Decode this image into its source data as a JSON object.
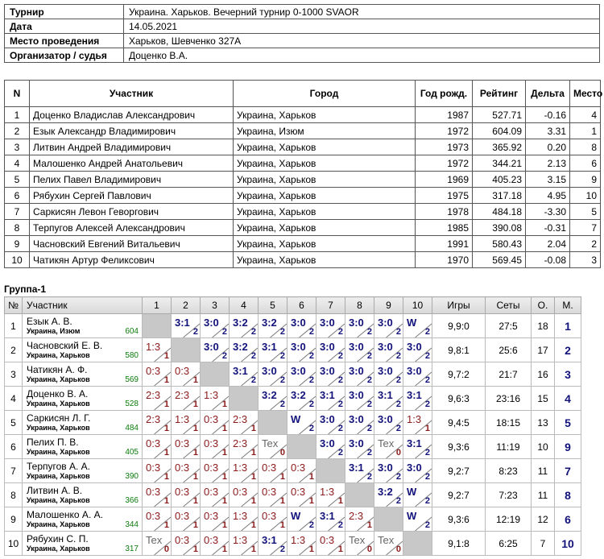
{
  "tournament_info": [
    {
      "label": "Турнир",
      "value": "Украина. Харьков. Вечерний турнир 0-1000 SVAOR"
    },
    {
      "label": "Дата",
      "value": "14.05.2021"
    },
    {
      "label": "Место проведения",
      "value": "Харьков, Шевченко 327А"
    },
    {
      "label": "Организатор / судья",
      "value": "Доценко В.А."
    }
  ],
  "participants_table": {
    "headers": [
      "N",
      "Участник",
      "Город",
      "Год рожд.",
      "Рейтинг",
      "Дельта",
      "Место"
    ],
    "rows": [
      [
        "1",
        "Доценко Владислав Александрович",
        "Украина, Харьков",
        "1987",
        "527.71",
        "-0.16",
        "4"
      ],
      [
        "2",
        "Езык Александр Владимирович",
        "Украина, Изюм",
        "1972",
        "604.09",
        "3.31",
        "1"
      ],
      [
        "3",
        "Литвин Андрей Владимирович",
        "Украина, Харьков",
        "1973",
        "365.92",
        "0.20",
        "8"
      ],
      [
        "4",
        "Малошенко Андрей Анатольевич",
        "Украина, Харьков",
        "1972",
        "344.21",
        "2.13",
        "6"
      ],
      [
        "5",
        "Пелих Павел Владимирович",
        "Украина, Харьков",
        "1969",
        "405.23",
        "3.15",
        "9"
      ],
      [
        "6",
        "Рябухин Сергей Павлович",
        "Украина, Харьков",
        "1975",
        "317.18",
        "4.95",
        "10"
      ],
      [
        "7",
        "Саркисян Левон Геворгович",
        "Украина, Харьков",
        "1978",
        "484.18",
        "-3.30",
        "5"
      ],
      [
        "8",
        "Терпугов Алексей Александрович",
        "Украина, Харьков",
        "1985",
        "390.08",
        "-0.31",
        "7"
      ],
      [
        "9",
        "Часновский Евгений Витальевич",
        "Украина, Харьков",
        "1991",
        "580.43",
        "2.04",
        "2"
      ],
      [
        "10",
        "Чатикян Артур Феликсович",
        "Украина, Харьков",
        "1970",
        "569.45",
        "-0.08",
        "3"
      ]
    ]
  },
  "group": {
    "title": "Группа-1",
    "headers": {
      "num": "№",
      "name": "Участник",
      "cols": [
        "1",
        "2",
        "3",
        "4",
        "5",
        "6",
        "7",
        "8",
        "9",
        "10"
      ],
      "games": "Игры",
      "sets": "Сеты",
      "points": "О.",
      "place": "М."
    },
    "rows": [
      {
        "num": "1",
        "name": "Езык А. В.",
        "city": "Украина, Изюм",
        "rating": "604",
        "cells": [
          null,
          [
            "3:1",
            "2",
            "w"
          ],
          [
            "3:0",
            "2",
            "w"
          ],
          [
            "3:2",
            "2",
            "w"
          ],
          [
            "3:2",
            "2",
            "w"
          ],
          [
            "3:0",
            "2",
            "w"
          ],
          [
            "3:0",
            "2",
            "w"
          ],
          [
            "3:0",
            "2",
            "w"
          ],
          [
            "3:0",
            "2",
            "w"
          ],
          [
            "W",
            "2",
            "w"
          ]
        ],
        "games": "9,9:0",
        "sets": "27:5",
        "points": "18",
        "place": "1"
      },
      {
        "num": "2",
        "name": "Часновский Е. В.",
        "city": "Украина, Харьков",
        "rating": "580",
        "cells": [
          [
            "1:3",
            "1",
            "l"
          ],
          null,
          [
            "3:0",
            "2",
            "w"
          ],
          [
            "3:2",
            "2",
            "w"
          ],
          [
            "3:1",
            "2",
            "w"
          ],
          [
            "3:0",
            "2",
            "w"
          ],
          [
            "3:0",
            "2",
            "w"
          ],
          [
            "3:0",
            "2",
            "w"
          ],
          [
            "3:0",
            "2",
            "w"
          ],
          [
            "3:0",
            "2",
            "w"
          ]
        ],
        "games": "9,8:1",
        "sets": "25:6",
        "points": "17",
        "place": "2"
      },
      {
        "num": "3",
        "name": "Чатикян А. Ф.",
        "city": "Украина, Харьков",
        "rating": "569",
        "cells": [
          [
            "0:3",
            "1",
            "l"
          ],
          [
            "0:3",
            "1",
            "l"
          ],
          null,
          [
            "3:1",
            "2",
            "w"
          ],
          [
            "3:0",
            "2",
            "w"
          ],
          [
            "3:0",
            "2",
            "w"
          ],
          [
            "3:0",
            "2",
            "w"
          ],
          [
            "3:0",
            "2",
            "w"
          ],
          [
            "3:0",
            "2",
            "w"
          ],
          [
            "3:0",
            "2",
            "w"
          ]
        ],
        "games": "9,7:2",
        "sets": "21:7",
        "points": "16",
        "place": "3"
      },
      {
        "num": "4",
        "name": "Доценко В. А.",
        "city": "Украина, Харьков",
        "rating": "528",
        "cells": [
          [
            "2:3",
            "1",
            "l"
          ],
          [
            "2:3",
            "1",
            "l"
          ],
          [
            "1:3",
            "1",
            "l"
          ],
          null,
          [
            "3:2",
            "2",
            "w"
          ],
          [
            "3:2",
            "2",
            "w"
          ],
          [
            "3:1",
            "2",
            "w"
          ],
          [
            "3:0",
            "2",
            "w"
          ],
          [
            "3:1",
            "2",
            "w"
          ],
          [
            "3:1",
            "2",
            "w"
          ]
        ],
        "games": "9,6:3",
        "sets": "23:16",
        "points": "15",
        "place": "4"
      },
      {
        "num": "5",
        "name": "Саркисян Л. Г.",
        "city": "Украина, Харьков",
        "rating": "484",
        "cells": [
          [
            "2:3",
            "1",
            "l"
          ],
          [
            "1:3",
            "1",
            "l"
          ],
          [
            "0:3",
            "1",
            "l"
          ],
          [
            "2:3",
            "1",
            "l"
          ],
          null,
          [
            "W",
            "2",
            "w"
          ],
          [
            "3:0",
            "2",
            "w"
          ],
          [
            "3:0",
            "2",
            "w"
          ],
          [
            "3:0",
            "2",
            "w"
          ],
          [
            "1:3",
            "1",
            "l"
          ]
        ],
        "games": "9,4:5",
        "sets": "18:15",
        "points": "13",
        "place": "5"
      },
      {
        "num": "6",
        "name": "Пелих П. В.",
        "city": "Украина, Харьков",
        "rating": "405",
        "cells": [
          [
            "0:3",
            "1",
            "l"
          ],
          [
            "0:3",
            "1",
            "l"
          ],
          [
            "0:3",
            "1",
            "l"
          ],
          [
            "2:3",
            "1",
            "l"
          ],
          [
            "Tex",
            "0",
            "t"
          ],
          null,
          [
            "3:0",
            "2",
            "w"
          ],
          [
            "3:0",
            "2",
            "w"
          ],
          [
            "Tex",
            "0",
            "t"
          ],
          [
            "3:1",
            "2",
            "w"
          ]
        ],
        "games": "9,3:6",
        "sets": "11:19",
        "points": "10",
        "place": "9"
      },
      {
        "num": "7",
        "name": "Терпугов А. А.",
        "city": "Украина, Харьков",
        "rating": "390",
        "cells": [
          [
            "0:3",
            "1",
            "l"
          ],
          [
            "0:3",
            "1",
            "l"
          ],
          [
            "0:3",
            "1",
            "l"
          ],
          [
            "1:3",
            "1",
            "l"
          ],
          [
            "0:3",
            "1",
            "l"
          ],
          [
            "0:3",
            "1",
            "l"
          ],
          null,
          [
            "3:1",
            "2",
            "w"
          ],
          [
            "3:0",
            "2",
            "w"
          ],
          [
            "3:0",
            "2",
            "w"
          ]
        ],
        "games": "9,2:7",
        "sets": "8:23",
        "points": "11",
        "place": "7"
      },
      {
        "num": "8",
        "name": "Литвин А. В.",
        "city": "Украина, Харьков",
        "rating": "366",
        "cells": [
          [
            "0:3",
            "1",
            "l"
          ],
          [
            "0:3",
            "1",
            "l"
          ],
          [
            "0:3",
            "1",
            "l"
          ],
          [
            "0:3",
            "1",
            "l"
          ],
          [
            "0:3",
            "1",
            "l"
          ],
          [
            "0:3",
            "1",
            "l"
          ],
          [
            "1:3",
            "1",
            "l"
          ],
          null,
          [
            "3:2",
            "2",
            "w"
          ],
          [
            "W",
            "2",
            "w"
          ]
        ],
        "games": "9,2:7",
        "sets": "7:23",
        "points": "11",
        "place": "8"
      },
      {
        "num": "9",
        "name": "Малошенко А. А.",
        "city": "Украина, Харьков",
        "rating": "344",
        "cells": [
          [
            "0:3",
            "1",
            "l"
          ],
          [
            "0:3",
            "1",
            "l"
          ],
          [
            "0:3",
            "1",
            "l"
          ],
          [
            "1:3",
            "1",
            "l"
          ],
          [
            "0:3",
            "1",
            "l"
          ],
          [
            "W",
            "2",
            "w"
          ],
          [
            "3:1",
            "2",
            "w"
          ],
          [
            "2:3",
            "1",
            "l"
          ],
          null,
          [
            "W",
            "2",
            "w"
          ]
        ],
        "games": "9,3:6",
        "sets": "12:19",
        "points": "12",
        "place": "6"
      },
      {
        "num": "10",
        "name": "Рябухин С. П.",
        "city": "Украина, Харьков",
        "rating": "317",
        "cells": [
          [
            "Tex",
            "0",
            "t"
          ],
          [
            "0:3",
            "1",
            "l"
          ],
          [
            "0:3",
            "1",
            "l"
          ],
          [
            "1:3",
            "1",
            "l"
          ],
          [
            "3:1",
            "2",
            "w"
          ],
          [
            "1:3",
            "1",
            "l"
          ],
          [
            "0:3",
            "1",
            "l"
          ],
          [
            "Tex",
            "0",
            "t"
          ],
          [
            "Tex",
            "0",
            "t"
          ],
          null
        ],
        "games": "9,1:8",
        "sets": "6:25",
        "points": "7",
        "place": "10"
      }
    ]
  },
  "colors": {
    "win": "#12127a",
    "loss": "#8b1a1a",
    "rating": "#0b7c0b",
    "diagonal": "#c8c8c8"
  }
}
